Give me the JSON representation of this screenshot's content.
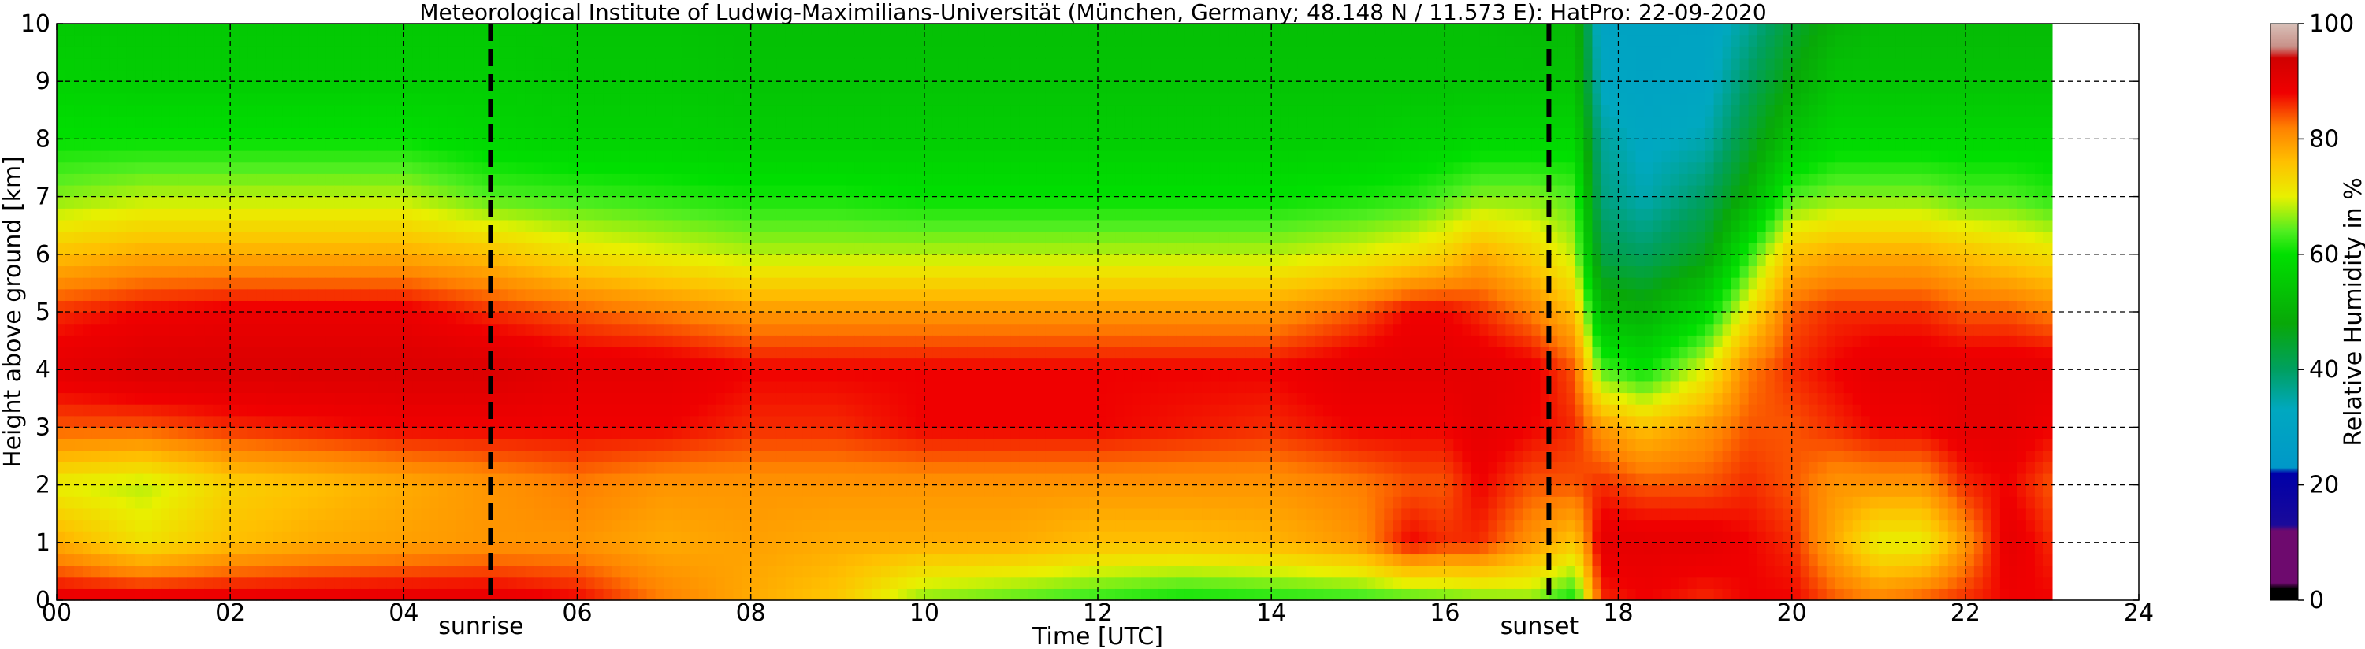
{
  "chart_data": {
    "type": "heatmap",
    "title": "Meteorological Institute of Ludwig-Maximilians-Universität (München, Germany; 48.148 N / 11.573 E):    HatPro: 22-09-2020",
    "xlabel": "Time [UTC]",
    "ylabel": "Height above ground [km]",
    "xlim": [
      0,
      24
    ],
    "ylim": [
      0,
      10
    ],
    "data_extent_x": [
      0,
      23
    ],
    "x_ticks": [
      "00",
      "02",
      "04",
      "06",
      "08",
      "10",
      "12",
      "14",
      "16",
      "18",
      "20",
      "22",
      "24"
    ],
    "x_tick_values": [
      0,
      2,
      4,
      6,
      8,
      10,
      12,
      14,
      16,
      18,
      20,
      22,
      24
    ],
    "y_ticks": [
      "0",
      "1",
      "2",
      "3",
      "4",
      "5",
      "6",
      "7",
      "8",
      "9",
      "10"
    ],
    "y_tick_values": [
      0,
      1,
      2,
      3,
      4,
      5,
      6,
      7,
      8,
      9,
      10
    ],
    "grid": true,
    "events": [
      {
        "label": "sunrise",
        "x": 5.0
      },
      {
        "label": "sunset",
        "x": 17.2
      }
    ],
    "colorbar": {
      "label": "Relative Humidity in %",
      "ticks": [
        "0",
        "20",
        "40",
        "60",
        "80",
        "100"
      ],
      "tick_values": [
        0,
        20,
        40,
        60,
        80,
        100
      ],
      "range": [
        0,
        100
      ],
      "stops": [
        {
          "v": 0,
          "color": "#000000"
        },
        {
          "v": 2,
          "color": "#000000"
        },
        {
          "v": 3,
          "color": "#6e0a6e"
        },
        {
          "v": 12,
          "color": "#6e0a6e"
        },
        {
          "v": 13,
          "color": "#1a0a9a"
        },
        {
          "v": 22,
          "color": "#0000a8"
        },
        {
          "v": 23,
          "color": "#0098c8"
        },
        {
          "v": 33,
          "color": "#00a8c0"
        },
        {
          "v": 40,
          "color": "#00a060"
        },
        {
          "v": 48,
          "color": "#08a808"
        },
        {
          "v": 60,
          "color": "#00e000"
        },
        {
          "v": 64,
          "color": "#50ee20"
        },
        {
          "v": 70,
          "color": "#e8f000"
        },
        {
          "v": 76,
          "color": "#ffc000"
        },
        {
          "v": 82,
          "color": "#ff8000"
        },
        {
          "v": 88,
          "color": "#f00000"
        },
        {
          "v": 94,
          "color": "#d00000"
        },
        {
          "v": 96,
          "color": "#c89088"
        },
        {
          "v": 100,
          "color": "#d8c0b8"
        }
      ]
    },
    "series": [
      {
        "hour": 0.0,
        "rh_by_km": [
          90,
          78,
          70,
          84,
          90,
          86,
          76,
          66,
          60,
          57,
          55
        ]
      },
      {
        "hour": 1.0,
        "rh_by_km": [
          90,
          72,
          68,
          84,
          92,
          88,
          78,
          68,
          60,
          56,
          55
        ]
      },
      {
        "hour": 2.0,
        "rh_by_km": [
          90,
          76,
          74,
          86,
          92,
          89,
          78,
          68,
          60,
          56,
          55
        ]
      },
      {
        "hour": 3.0,
        "rh_by_km": [
          90,
          78,
          76,
          87,
          92,
          89,
          78,
          68,
          60,
          56,
          55
        ]
      },
      {
        "hour": 4.0,
        "rh_by_km": [
          90,
          79,
          78,
          88,
          92,
          89,
          78,
          68,
          60,
          56,
          55
        ]
      },
      {
        "hour": 5.0,
        "rh_by_km": [
          90,
          80,
          80,
          88,
          92,
          86,
          76,
          64,
          58,
          56,
          55
        ]
      },
      {
        "hour": 6.0,
        "rh_by_km": [
          88,
          80,
          82,
          88,
          90,
          84,
          72,
          63,
          57,
          55,
          54
        ]
      },
      {
        "hour": 7.0,
        "rh_by_km": [
          82,
          78,
          80,
          88,
          90,
          82,
          70,
          62,
          57,
          55,
          54
        ]
      },
      {
        "hour": 8.0,
        "rh_by_km": [
          78,
          79,
          80,
          86,
          88,
          80,
          68,
          61,
          56,
          54,
          53
        ]
      },
      {
        "hour": 9.0,
        "rh_by_km": [
          75,
          78,
          80,
          86,
          88,
          80,
          68,
          61,
          56,
          54,
          53
        ]
      },
      {
        "hour": 10.0,
        "rh_by_km": [
          66,
          78,
          80,
          88,
          88,
          80,
          68,
          60,
          56,
          54,
          53
        ]
      },
      {
        "hour": 11.0,
        "rh_by_km": [
          64,
          78,
          80,
          88,
          88,
          80,
          68,
          60,
          56,
          54,
          53
        ]
      },
      {
        "hour": 12.0,
        "rh_by_km": [
          62,
          76,
          80,
          88,
          88,
          80,
          68,
          60,
          56,
          54,
          53
        ]
      },
      {
        "hour": 13.0,
        "rh_by_km": [
          60,
          76,
          80,
          87,
          88,
          80,
          68,
          60,
          56,
          54,
          53
        ]
      },
      {
        "hour": 14.0,
        "rh_by_km": [
          61,
          77,
          80,
          86,
          88,
          80,
          68,
          60,
          56,
          54,
          53
        ]
      },
      {
        "hour": 15.0,
        "rh_by_km": [
          62,
          80,
          82,
          88,
          90,
          84,
          70,
          61,
          56,
          54,
          53
        ]
      },
      {
        "hour": 15.6,
        "rh_by_km": [
          63,
          88,
          84,
          88,
          90,
          88,
          72,
          62,
          57,
          54,
          53
        ]
      },
      {
        "hour": 16.0,
        "rh_by_km": [
          64,
          86,
          84,
          88,
          90,
          88,
          74,
          64,
          57,
          54,
          53
        ]
      },
      {
        "hour": 16.4,
        "rh_by_km": [
          65,
          86,
          88,
          90,
          90,
          86,
          78,
          66,
          58,
          54,
          53
        ]
      },
      {
        "hour": 17.0,
        "rh_by_km": [
          66,
          80,
          84,
          88,
          89,
          82,
          74,
          66,
          58,
          54,
          52
        ]
      },
      {
        "hour": 17.5,
        "rh_by_km": [
          60,
          75,
          84,
          86,
          84,
          76,
          68,
          64,
          58,
          54,
          52
        ]
      },
      {
        "hour": 17.8,
        "rh_by_km": [
          86,
          90,
          86,
          80,
          64,
          52,
          42,
          38,
          36,
          32,
          30
        ]
      },
      {
        "hour": 18.3,
        "rh_by_km": [
          88,
          90,
          84,
          76,
          60,
          50,
          40,
          34,
          32,
          30,
          30
        ]
      },
      {
        "hour": 19.0,
        "rh_by_km": [
          86,
          90,
          84,
          80,
          70,
          58,
          46,
          40,
          34,
          31,
          30
        ]
      },
      {
        "hour": 19.5,
        "rh_by_km": [
          88,
          88,
          86,
          84,
          82,
          72,
          62,
          50,
          44,
          40,
          36
        ]
      },
      {
        "hour": 20.0,
        "rh_by_km": [
          88,
          86,
          84,
          84,
          86,
          84,
          76,
          64,
          54,
          48,
          44
        ]
      },
      {
        "hour": 20.5,
        "rh_by_km": [
          84,
          78,
          80,
          86,
          88,
          86,
          78,
          66,
          58,
          54,
          50
        ]
      },
      {
        "hour": 21.0,
        "rh_by_km": [
          82,
          70,
          80,
          88,
          90,
          86,
          78,
          66,
          58,
          54,
          52
        ]
      },
      {
        "hour": 21.5,
        "rh_by_km": [
          84,
          70,
          80,
          88,
          90,
          86,
          78,
          66,
          58,
          54,
          52
        ]
      },
      {
        "hour": 22.0,
        "rh_by_km": [
          86,
          80,
          86,
          90,
          90,
          84,
          76,
          64,
          58,
          54,
          52
        ]
      },
      {
        "hour": 22.5,
        "rh_by_km": [
          88,
          90,
          88,
          90,
          90,
          84,
          74,
          64,
          58,
          54,
          52
        ]
      },
      {
        "hour": 23.0,
        "rh_by_km": [
          88,
          86,
          84,
          88,
          90,
          82,
          72,
          62,
          58,
          54,
          52
        ]
      }
    ]
  }
}
